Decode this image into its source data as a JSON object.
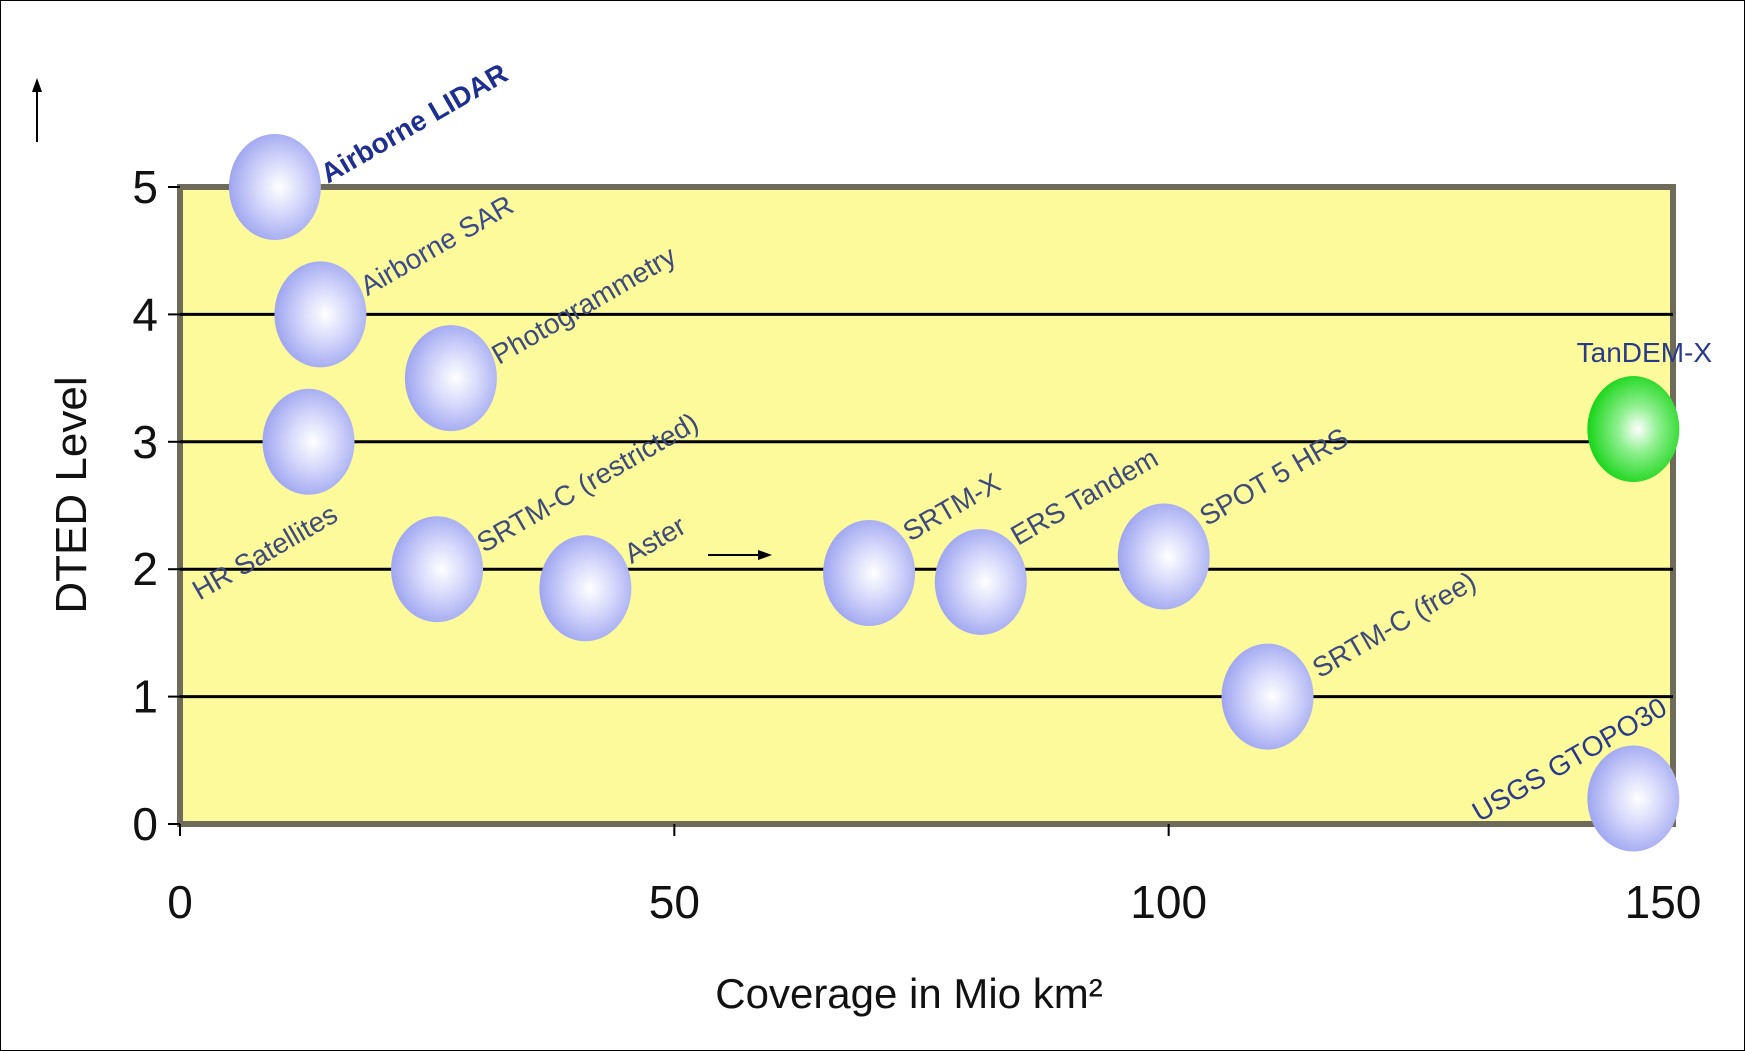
{
  "chart_data": {
    "type": "scatter",
    "title": "",
    "xlabel": "Coverage in Mio km²",
    "ylabel": "DTED Level",
    "xlim": [
      0,
      150
    ],
    "ylim": [
      0,
      5
    ],
    "x_ticks": [
      "0",
      "50",
      "100",
      "150"
    ],
    "y_ticks": [
      "0",
      "1",
      "2",
      "3",
      "4",
      "5"
    ],
    "grid": "horizontal",
    "plot_background": "#fdfa9c",
    "points": [
      {
        "label": "Airborne LIDAR",
        "x": 9.6,
        "y": 5.0,
        "color": "#aab0f5",
        "label_color": "#1f2f8f"
      },
      {
        "label": "Airborne SAR",
        "x": 14.2,
        "y": 4.0,
        "color": "#aab0f5",
        "label_color": "#3a4a8a"
      },
      {
        "label": "Photogrammetry",
        "x": 27.4,
        "y": 3.5,
        "color": "#aab0f5",
        "label_color": "#3d4a7a"
      },
      {
        "label": "HR Satellites",
        "x": 13.0,
        "y": 3.0,
        "color": "#aab0f5",
        "label_color": "#3d4a7a"
      },
      {
        "label": "SRTM-C (restricted)",
        "x": 26.0,
        "y": 2.0,
        "color": "#aab0f5",
        "label_color": "#3d4a7a"
      },
      {
        "label": "Aster",
        "x": 41.0,
        "y": 1.85,
        "color": "#aab0f5",
        "label_color": "#3d4a7a"
      },
      {
        "label": "SRTM-X",
        "x": 69.7,
        "y": 1.97,
        "color": "#aab0f5",
        "label_color": "#3d4a7a"
      },
      {
        "label": "ERS Tandem",
        "x": 81.0,
        "y": 1.9,
        "color": "#aab0f5",
        "label_color": "#3d4a7a"
      },
      {
        "label": "SPOT 5 HRS",
        "x": 99.5,
        "y": 2.1,
        "color": "#aab0f5",
        "label_color": "#3d4a7a"
      },
      {
        "label": "SRTM-C (free)",
        "x": 110.0,
        "y": 1.0,
        "color": "#aab0f5",
        "label_color": "#3d4a7a"
      },
      {
        "label": "TanDEM-X",
        "x": 147.0,
        "y": 3.1,
        "color": "#22dd22",
        "label_color": "#2a3a8a"
      },
      {
        "label": "USGS GTOPO30",
        "x": 147.0,
        "y": 0.2,
        "color": "#aab0f5",
        "label_color": "#2a3a8a"
      }
    ]
  }
}
